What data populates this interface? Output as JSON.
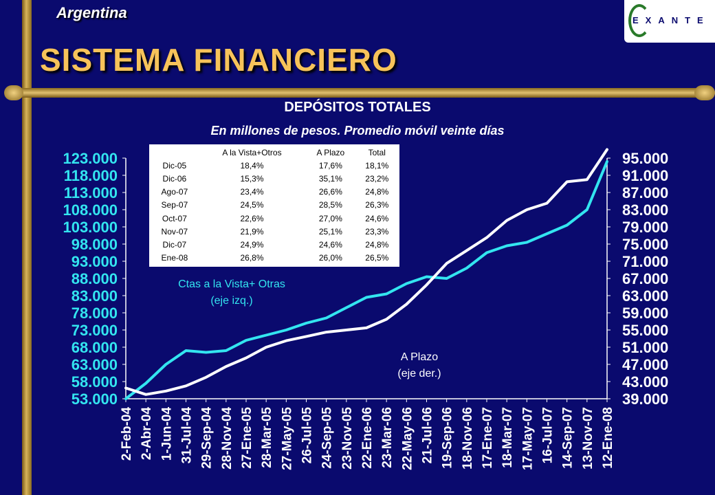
{
  "header": {
    "country": "Argentina",
    "title": "SISTEMA FINANCIERO",
    "logo_text": "EXANTE"
  },
  "colors": {
    "background": "#0a0a6e",
    "title": "#f7c35a",
    "series_vista": "#33e5f0",
    "series_plazo": "#ffffff",
    "axis_text": "#ffffff"
  },
  "chart_data": {
    "type": "line",
    "title": "DEPÓSITOS TOTALES",
    "subtitle": "En millones de pesos. Promedio móvil  veinte días",
    "x_ticks": [
      "2-Feb-04",
      "2-Abr-04",
      "1-Jun-04",
      "31-Jul-04",
      "29-Sep-04",
      "28-Nov-04",
      "27-Ene-05",
      "28-Mar-05",
      "27-May-05",
      "26-Jul-05",
      "24-Sep-05",
      "23-Nov-05",
      "22-Ene-06",
      "23-Mar-06",
      "22-May-06",
      "21-Jul-06",
      "19-Sep-06",
      "18-Nov-06",
      "17-Ene-07",
      "18-Mar-07",
      "17-May-07",
      "16-Jul-07",
      "14-Sep-07",
      "13-Nov-07",
      "12-Ene-08"
    ],
    "y_left": {
      "ylim": [
        53000,
        123000
      ],
      "ticks": [
        "123.000",
        "118.000",
        "113.000",
        "108.000",
        "103.000",
        "98.000",
        "93.000",
        "88.000",
        "83.000",
        "78.000",
        "73.000",
        "68.000",
        "63.000",
        "58.000",
        "53.000"
      ]
    },
    "y_right": {
      "ylim": [
        39000,
        95000
      ],
      "ticks": [
        "95.000",
        "91.000",
        "87.000",
        "83.000",
        "79.000",
        "75.000",
        "71.000",
        "67.000",
        "63.000",
        "59.000",
        "55.000",
        "51.000",
        "47.000",
        "43.000",
        "39.000"
      ]
    },
    "grid": false,
    "series": [
      {
        "name": "Ctas a la Vista+ Otras",
        "axis": "left",
        "color": "#33e5f0",
        "x": [
          "2-Feb-04",
          "2-Abr-04",
          "1-Jun-04",
          "31-Jul-04",
          "29-Sep-04",
          "28-Nov-04",
          "27-Ene-05",
          "28-Mar-05",
          "27-May-05",
          "26-Jul-05",
          "24-Sep-05",
          "23-Nov-05",
          "22-Ene-06",
          "23-Mar-06",
          "22-May-06",
          "21-Jul-06",
          "19-Sep-06",
          "18-Nov-06",
          "17-Ene-07",
          "18-Mar-07",
          "17-May-07",
          "16-Jul-07",
          "14-Sep-07",
          "13-Nov-07",
          "12-Ene-08"
        ],
        "values": [
          53000,
          57500,
          63000,
          67000,
          66500,
          67000,
          70000,
          71500,
          73000,
          75000,
          76500,
          79500,
          82500,
          83500,
          86500,
          88500,
          88000,
          91000,
          95500,
          97500,
          98500,
          101000,
          103500,
          108000,
          122000
        ]
      },
      {
        "name": "A Plazo",
        "axis": "right",
        "color": "#ffffff",
        "x": [
          "2-Feb-04",
          "2-Abr-04",
          "1-Jun-04",
          "31-Jul-04",
          "29-Sep-04",
          "28-Nov-04",
          "27-Ene-05",
          "28-Mar-05",
          "27-May-05",
          "26-Jul-05",
          "24-Sep-05",
          "23-Nov-05",
          "22-Ene-06",
          "23-Mar-06",
          "22-May-06",
          "21-Jul-06",
          "19-Sep-06",
          "18-Nov-06",
          "17-Ene-07",
          "18-Mar-07",
          "17-May-07",
          "16-Jul-07",
          "14-Sep-07",
          "13-Nov-07",
          "12-Ene-08"
        ],
        "values": [
          41500,
          40000,
          40800,
          42000,
          44000,
          46500,
          48500,
          51000,
          52500,
          53500,
          54500,
          55000,
          55500,
          57500,
          61000,
          65500,
          70500,
          73500,
          76500,
          80500,
          83000,
          84500,
          89500,
          90000,
          97000
        ]
      }
    ],
    "annotations": {
      "vista": [
        "Ctas a la Vista+ Otras",
        "(eje izq.)"
      ],
      "plazo": [
        "A Plazo",
        "(eje der.)"
      ]
    },
    "table": {
      "headers": [
        "",
        "A la Vista+Otros",
        "A Plazo",
        "Total"
      ],
      "rows": [
        [
          "Dic-05",
          "18,4%",
          "17,6%",
          "18,1%"
        ],
        [
          "Dic-06",
          "15,3%",
          "35,1%",
          "23,2%"
        ],
        [
          "Ago-07",
          "23,4%",
          "26,6%",
          "24,8%"
        ],
        [
          "Sep-07",
          "24,5%",
          "28,5%",
          "26,3%"
        ],
        [
          "Oct-07",
          "22,6%",
          "27,0%",
          "24,6%"
        ],
        [
          "Nov-07",
          "21,9%",
          "25,1%",
          "23,3%"
        ],
        [
          "Dic-07",
          "24,9%",
          "24,6%",
          "24,8%"
        ],
        [
          "Ene-08",
          "26,8%",
          "26,0%",
          "26,5%"
        ]
      ]
    }
  }
}
